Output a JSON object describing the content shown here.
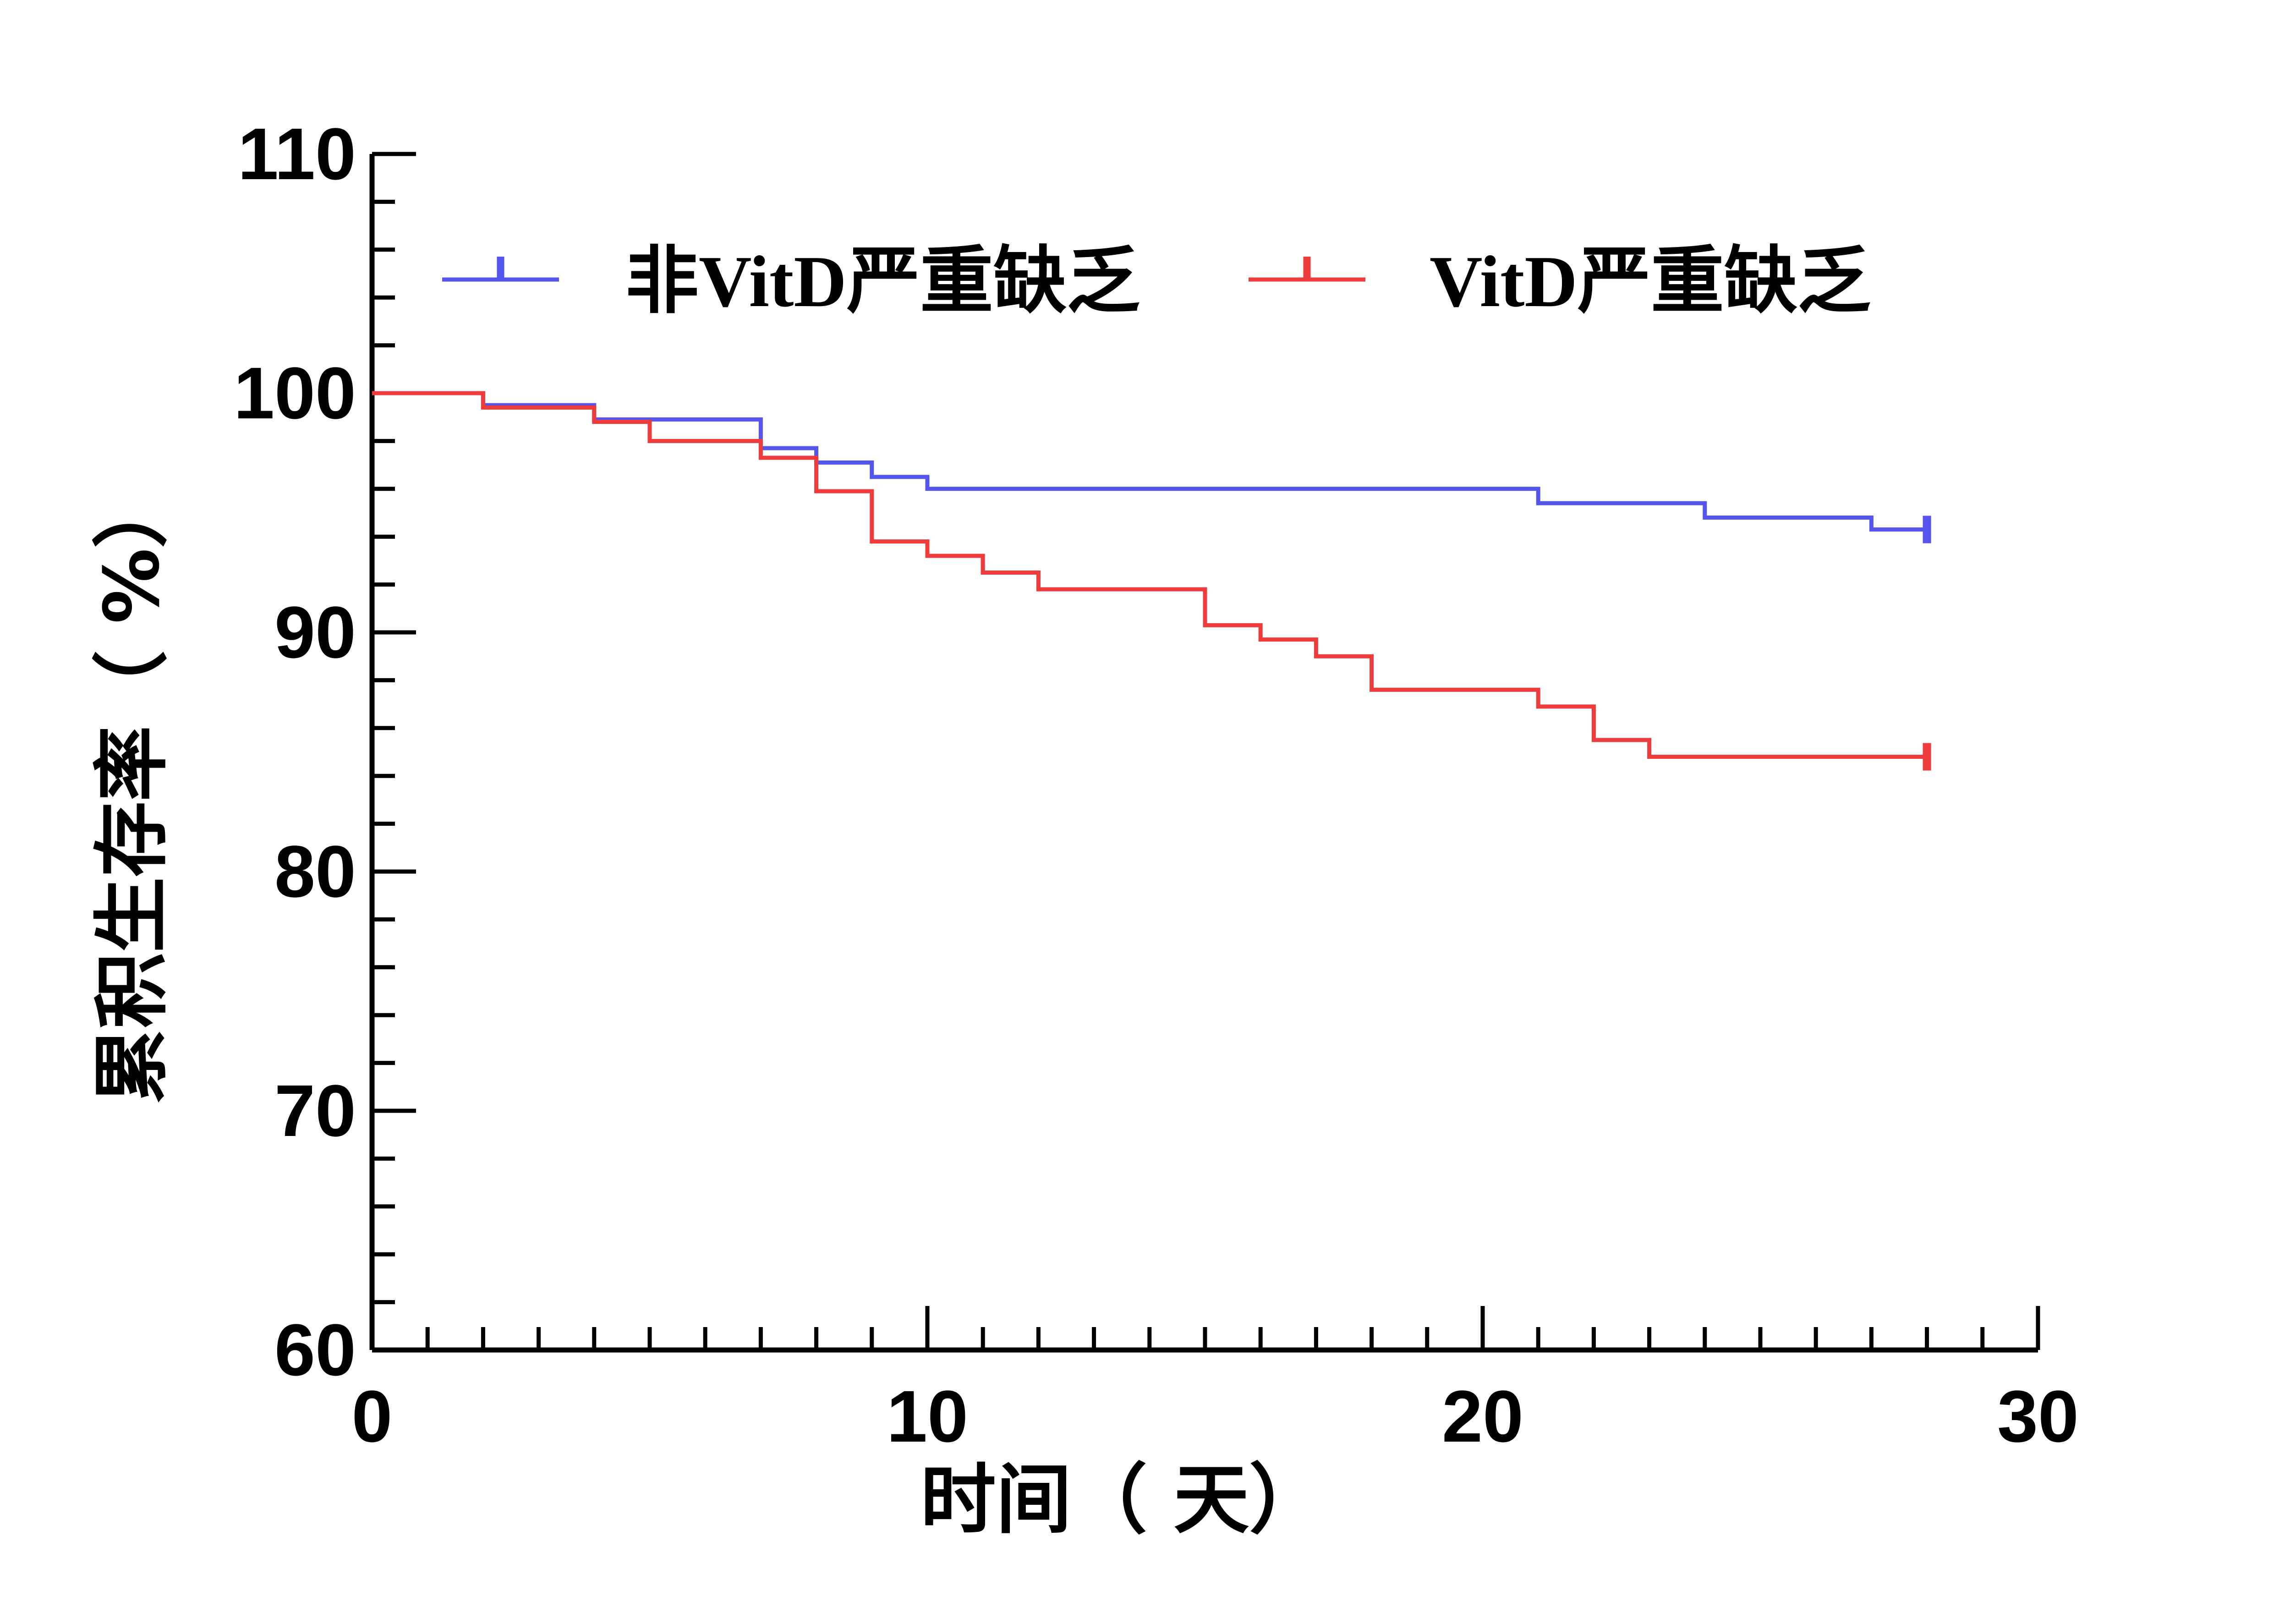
{
  "chart_data": {
    "type": "line",
    "subtype": "kaplan-meier step",
    "xlabel": "时间（ 天）",
    "ylabel": "累积生存率（ %）",
    "xlim": [
      0,
      30
    ],
    "ylim": [
      60,
      110
    ],
    "x_major_ticks": [
      0,
      10,
      20,
      30
    ],
    "x_minor_step": 1,
    "y_major_ticks": [
      60,
      70,
      80,
      90,
      100,
      110
    ],
    "y_minor_step": 2,
    "x_tick_labels": [
      "0",
      "10",
      "20",
      "30"
    ],
    "y_tick_labels": [
      "60",
      "70",
      "80",
      "90",
      "100",
      "110"
    ],
    "legend_position": "top",
    "grid": false,
    "series": [
      {
        "name": "非VitD严重缺乏",
        "color": "#5555ee",
        "x": [
          0,
          2,
          4,
          7,
          8,
          9,
          10,
          21,
          24,
          27,
          28
        ],
        "y": [
          100,
          99.5,
          98.9,
          97.7,
          97.1,
          96.5,
          96.0,
          95.4,
          94.8,
          94.3,
          94.3
        ],
        "censored_at": [
          28
        ]
      },
      {
        "name": "VitD严重缺乏",
        "color": "#ee3b3b",
        "x": [
          0,
          2,
          4,
          5,
          7,
          8,
          9,
          10,
          11,
          12,
          15,
          16,
          17,
          18,
          21,
          22,
          23,
          28
        ],
        "y": [
          100,
          99.4,
          98.8,
          98.0,
          97.3,
          95.9,
          93.8,
          93.2,
          92.5,
          91.8,
          90.3,
          89.7,
          89.0,
          87.6,
          86.9,
          85.5,
          84.8,
          84.8
        ],
        "censored_at": [
          28
        ]
      }
    ]
  }
}
